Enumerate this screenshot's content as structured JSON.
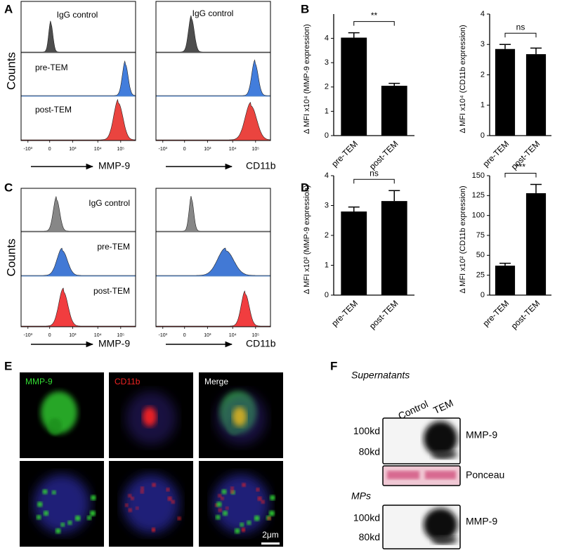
{
  "figure": {
    "letters": [
      "A",
      "B",
      "C",
      "D",
      "E",
      "F"
    ],
    "flow_panels": [
      {
        "counts_label": "Counts",
        "rows": [
          "IgG control",
          "pre-TEM",
          "post-TEM"
        ],
        "row_colors": [
          "#3a3a3a",
          "#2e6fd8",
          "#e8302a"
        ],
        "xticks": [
          {
            "value": -1000,
            "label": "-10³"
          },
          0,
          {
            "value": 1000,
            "label": "10³"
          },
          {
            "value": 10000,
            "label": "10⁴"
          },
          {
            "value": 100000,
            "label": "10⁵"
          }
        ],
        "markers": [
          "MMP-9",
          "CD11b"
        ]
      },
      {
        "counts_label": "Counts",
        "rows": [
          "IgG control",
          "pre-TEM",
          "post-TEM"
        ],
        "row_colors": [
          "#7a7a7a",
          "#2e6ad0",
          "#f0282a"
        ],
        "xticks": [
          {
            "value": -1000,
            "label": "-10³"
          },
          0,
          {
            "value": 1000,
            "label": "10³"
          },
          {
            "value": 10000,
            "label": "10⁴"
          },
          {
            "value": 100000,
            "label": "10⁵"
          }
        ],
        "markers": [
          "MMP-9",
          "CD11b"
        ]
      }
    ],
    "microscopy": {
      "channels": [
        "MMP-9",
        "CD11b",
        "Merge"
      ],
      "channel_colors": [
        "#33dd33",
        "#ee2222",
        "#ffffff"
      ],
      "scale_bar": "2μm"
    },
    "blot": {
      "sections": [
        {
          "title": "Supernatants",
          "lanes": [
            "Control",
            "TEM"
          ],
          "bands": [
            {
              "sizes": [
                "100kd",
                "80kd"
              ],
              "label": "MMP-9"
            },
            {
              "label": "Ponceau"
            }
          ]
        },
        {
          "title": "MPs",
          "bands": [
            {
              "sizes": [
                "100kd",
                "80kd"
              ],
              "label": "MMP-9"
            }
          ]
        }
      ]
    }
  },
  "chart_data": [
    {
      "type": "bar",
      "ylabel": "Δ MFI x10⁴ (MMP-9 expression)",
      "categories": [
        "pre-TEM",
        "post-TEM"
      ],
      "values": [
        4.03,
        2.05
      ],
      "errors": [
        0.2,
        0.1
      ],
      "color": "#000000",
      "ylim": [
        0,
        5
      ],
      "yticks": [
        0,
        1,
        2,
        3,
        4
      ],
      "significance": "**"
    },
    {
      "type": "bar",
      "ylabel": "Δ MFI x10⁴ (CD11b expression)",
      "categories": [
        "pre-TEM",
        "post-TEM"
      ],
      "values": [
        2.85,
        2.68
      ],
      "errors": [
        0.15,
        0.2
      ],
      "color": "#000000",
      "ylim": [
        0,
        4
      ],
      "yticks": [
        0,
        1,
        2,
        3,
        4
      ],
      "significance": "ns"
    },
    {
      "type": "bar",
      "ylabel": "Δ MFI x10² (MMP-9 expression)",
      "categories": [
        "pre-TEM",
        "post-TEM"
      ],
      "values": [
        2.8,
        3.15
      ],
      "errors": [
        0.15,
        0.35
      ],
      "color": "#000000",
      "ylim": [
        0,
        4
      ],
      "yticks": [
        0,
        1,
        2,
        3,
        4
      ],
      "significance": "ns"
    },
    {
      "type": "bar",
      "ylabel": "Δ MFI x10² (CD11b expression)",
      "categories": [
        "pre-TEM",
        "post-TEM"
      ],
      "values": [
        37,
        128
      ],
      "errors": [
        3,
        11
      ],
      "color": "#000000",
      "ylim": [
        0,
        150
      ],
      "yticks": [
        0,
        25,
        50,
        75,
        100,
        125,
        150
      ],
      "significance": "***"
    }
  ]
}
